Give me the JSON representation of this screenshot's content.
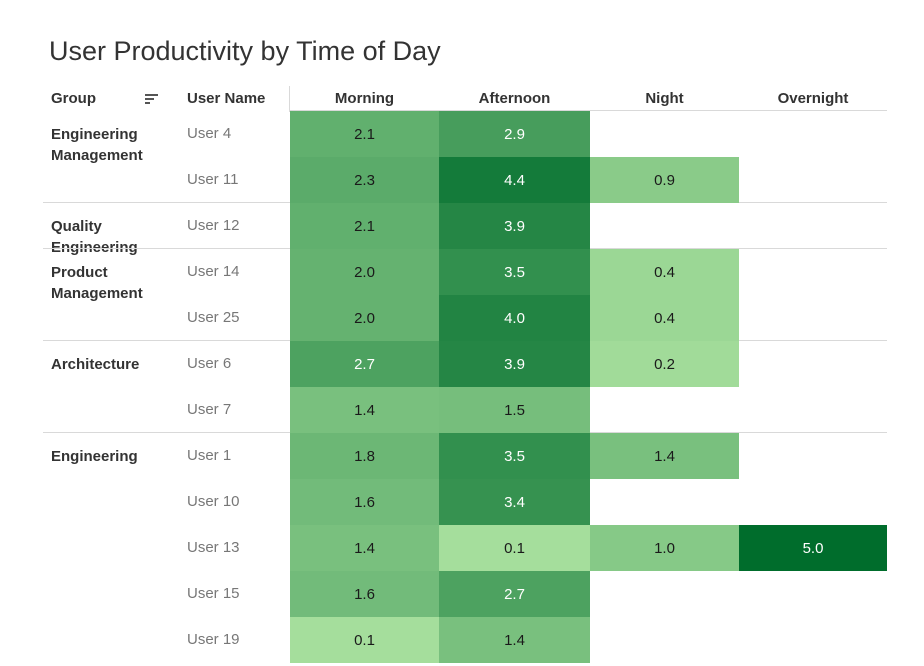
{
  "chart_data": {
    "type": "heatmap",
    "title": "User Productivity by Time of Day",
    "columns": {
      "group": "Group",
      "user": "User Name",
      "periods": [
        "Morning",
        "Afternoon",
        "Night",
        "Overnight"
      ]
    },
    "value_range": [
      0,
      5
    ],
    "groups": [
      {
        "name": "Engineering Management",
        "rows": [
          {
            "user": "User 4",
            "values": [
              2.1,
              2.9,
              null,
              null
            ]
          },
          {
            "user": "User 11",
            "values": [
              2.3,
              4.4,
              0.9,
              null
            ]
          }
        ]
      },
      {
        "name": "Quality Engineering",
        "rows": [
          {
            "user": "User 12",
            "values": [
              2.1,
              3.9,
              null,
              null
            ]
          }
        ]
      },
      {
        "name": "Product Management",
        "rows": [
          {
            "user": "User 14",
            "values": [
              2.0,
              3.5,
              0.4,
              null
            ]
          },
          {
            "user": "User 25",
            "values": [
              2.0,
              4.0,
              0.4,
              null
            ]
          }
        ]
      },
      {
        "name": "Architecture",
        "rows": [
          {
            "user": "User 6",
            "values": [
              2.7,
              3.9,
              0.2,
              null
            ]
          },
          {
            "user": "User 7",
            "values": [
              1.4,
              1.5,
              null,
              null
            ]
          }
        ]
      },
      {
        "name": "Engineering",
        "rows": [
          {
            "user": "User 1",
            "values": [
              1.8,
              3.5,
              1.4,
              null
            ]
          },
          {
            "user": "User 10",
            "values": [
              1.6,
              3.4,
              null,
              null
            ]
          },
          {
            "user": "User 13",
            "values": [
              1.4,
              0.1,
              1.0,
              5.0
            ]
          },
          {
            "user": "User 15",
            "values": [
              1.6,
              2.7,
              null,
              null
            ]
          },
          {
            "user": "User 19",
            "values": [
              0.1,
              1.4,
              null,
              null
            ]
          }
        ]
      }
    ]
  }
}
